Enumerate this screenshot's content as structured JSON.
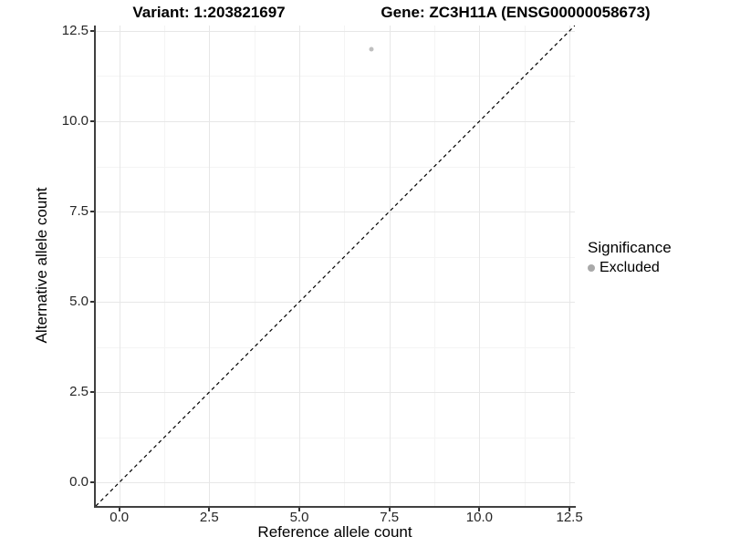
{
  "titles": {
    "variant": "Variant: 1:203821697",
    "gene": "Gene: ZC3H11A (ENSG00000058673)"
  },
  "axes": {
    "x_label": "Reference allele count",
    "y_label": "Alternative allele count",
    "x_tick_labels": [
      "0.0",
      "2.5",
      "5.0",
      "7.5",
      "10.0",
      "12.5"
    ],
    "y_tick_labels": [
      "0.0",
      "2.5",
      "5.0",
      "7.5",
      "10.0",
      "12.5"
    ]
  },
  "legend": {
    "title": "Significance",
    "items": [
      {
        "label": "Excluded",
        "marker": "circle",
        "color": "#a9a9a9"
      }
    ]
  },
  "chart_data": {
    "type": "scatter",
    "title": "Variant: 1:203821697    Gene: ZC3H11A (ENSG00000058673)",
    "xlabel": "Reference allele count",
    "ylabel": "Alternative allele count",
    "xlim": [
      -0.65,
      12.65
    ],
    "ylim": [
      -0.65,
      12.65
    ],
    "x_ticks": [
      0,
      2.5,
      5,
      7.5,
      10,
      12.5
    ],
    "y_ticks": [
      0,
      2.5,
      5,
      7.5,
      10,
      12.5
    ],
    "x_minor_ticks": [
      1.25,
      3.75,
      6.25,
      8.75,
      11.25
    ],
    "y_minor_ticks": [
      1.25,
      3.75,
      6.25,
      8.75,
      11.25
    ],
    "grid": "major+minor",
    "legend_position": "right",
    "series": [
      {
        "name": "Excluded",
        "color": "#bfbfbf",
        "marker": "circle",
        "points": [
          {
            "x": 7,
            "y": 12
          }
        ]
      }
    ],
    "reference_line": {
      "equation": "y = x",
      "style": "dashed",
      "color": "#000000"
    }
  },
  "colors": {
    "background": "#ffffff",
    "axis_line": "#404040",
    "tick_label": "#262626",
    "grid_major": "#e7e7e7",
    "grid_minor": "#f4f4f4"
  }
}
